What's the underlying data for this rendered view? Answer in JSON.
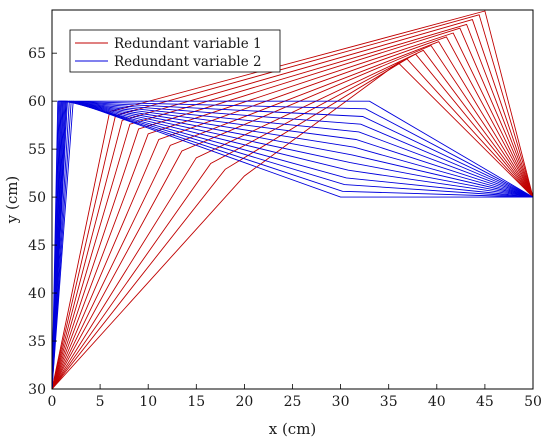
{
  "chart_data": {
    "type": "line",
    "xlabel": "x (cm)",
    "ylabel": "y (cm)",
    "xlim": [
      0,
      50
    ],
    "ylim": [
      30,
      69.5
    ],
    "x_ticks": [
      0,
      5,
      10,
      15,
      20,
      25,
      30,
      35,
      40,
      45,
      50
    ],
    "y_ticks": [
      30,
      35,
      40,
      45,
      50,
      55,
      60,
      65
    ],
    "legend_position": "top-left",
    "grid": false,
    "series": [
      {
        "name": "Redundant variable 1",
        "color": "#c00000",
        "description_points": "each trajectory: base (0,30) -> elbow -> wrist -> end (50,50)",
        "paths": [
          [
            [
              0,
              30
            ],
            [
              20,
              52.2
            ],
            [
              36,
              64
            ],
            [
              50,
              50
            ]
          ],
          [
            [
              0,
              30
            ],
            [
              18,
              52.9
            ],
            [
              36.9,
              64.4
            ],
            [
              50,
              50
            ]
          ],
          [
            [
              0,
              30
            ],
            [
              16.5,
              53.5
            ],
            [
              37.8,
              64.9
            ],
            [
              50,
              50
            ]
          ],
          [
            [
              0,
              30
            ],
            [
              15,
              54.1
            ],
            [
              38.6,
              65.3
            ],
            [
              50,
              50
            ]
          ],
          [
            [
              0,
              30
            ],
            [
              13.5,
              54.8
            ],
            [
              39.4,
              65.8
            ],
            [
              50,
              50
            ]
          ],
          [
            [
              0,
              30
            ],
            [
              12.3,
              55.4
            ],
            [
              40.2,
              66.2
            ],
            [
              50,
              50
            ]
          ],
          [
            [
              0,
              30
            ],
            [
              11.1,
              56
            ],
            [
              41,
              66.7
            ],
            [
              50,
              50
            ]
          ],
          [
            [
              0,
              30
            ],
            [
              10,
              56.6
            ],
            [
              41.7,
              67.1
            ],
            [
              50,
              50
            ]
          ],
          [
            [
              0,
              30
            ],
            [
              9,
              57.1
            ],
            [
              42.4,
              67.6
            ],
            [
              50,
              50
            ]
          ],
          [
            [
              0,
              30
            ],
            [
              8.1,
              57.6
            ],
            [
              43.1,
              68
            ],
            [
              50,
              50
            ]
          ],
          [
            [
              0,
              30
            ],
            [
              7.3,
              58
            ],
            [
              43.7,
              68.5
            ],
            [
              50,
              50
            ]
          ],
          [
            [
              0,
              30
            ],
            [
              6.6,
              58.5
            ],
            [
              44.4,
              69
            ],
            [
              50,
              50
            ]
          ],
          [
            [
              0,
              30
            ],
            [
              6,
              58.9
            ],
            [
              45,
              69.4
            ],
            [
              50,
              50
            ]
          ]
        ]
      },
      {
        "name": "Redundant variable 2",
        "color": "#0000dd",
        "description_points": "each trajectory: base (0,30) -> elbow -> wrist -> end (50,50)",
        "paths": [
          [
            [
              0,
              30
            ],
            [
              0.6,
              60
            ],
            [
              33,
              60
            ],
            [
              50,
              50
            ]
          ],
          [
            [
              0,
              30
            ],
            [
              0.7,
              60
            ],
            [
              32.6,
              59.2
            ],
            [
              50,
              50
            ]
          ],
          [
            [
              0,
              30
            ],
            [
              0.8,
              60
            ],
            [
              32.3,
              58.4
            ],
            [
              50,
              50
            ]
          ],
          [
            [
              0,
              30
            ],
            [
              0.9,
              60
            ],
            [
              32.1,
              57.6
            ],
            [
              50,
              50
            ]
          ],
          [
            [
              0,
              30
            ],
            [
              1,
              60
            ],
            [
              31.9,
              56.8
            ],
            [
              50,
              50
            ]
          ],
          [
            [
              0,
              30
            ],
            [
              1.1,
              60
            ],
            [
              31.6,
              56
            ],
            [
              50,
              50
            ]
          ],
          [
            [
              0,
              30
            ],
            [
              1.2,
              60
            ],
            [
              31.4,
              55.2
            ],
            [
              50,
              50
            ]
          ],
          [
            [
              0,
              30
            ],
            [
              1.3,
              60
            ],
            [
              31.2,
              54.4
            ],
            [
              50,
              50
            ]
          ],
          [
            [
              0,
              30
            ],
            [
              1.4,
              60
            ],
            [
              31,
              53.6
            ],
            [
              50,
              50
            ]
          ],
          [
            [
              0,
              30
            ],
            [
              1.5,
              60
            ],
            [
              30.8,
              52.8
            ],
            [
              50,
              50
            ]
          ],
          [
            [
              0,
              30
            ],
            [
              1.6,
              60
            ],
            [
              30.6,
              52
            ],
            [
              50,
              50
            ]
          ],
          [
            [
              0,
              30
            ],
            [
              1.8,
              60
            ],
            [
              30.4,
              51.3
            ],
            [
              50,
              50
            ]
          ],
          [
            [
              0,
              30
            ],
            [
              2,
              60
            ],
            [
              30.2,
              50.6
            ],
            [
              50,
              50
            ]
          ],
          [
            [
              0,
              30
            ],
            [
              2.2,
              60
            ],
            [
              30,
              50
            ],
            [
              50,
              50
            ]
          ]
        ]
      }
    ]
  }
}
